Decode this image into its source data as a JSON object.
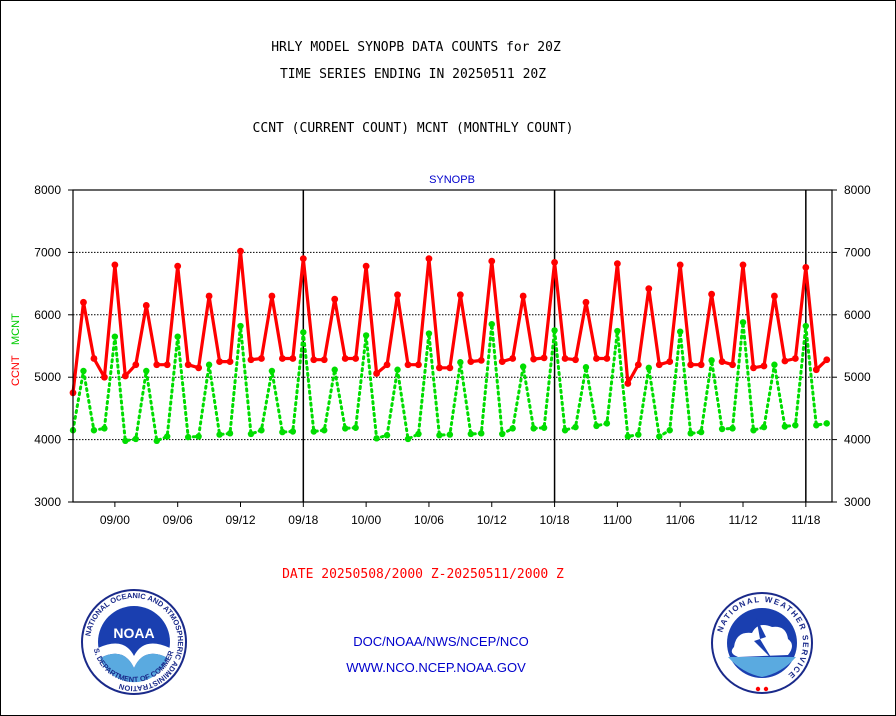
{
  "header": {
    "title_line1": "HRLY MODEL SYNOPB DATA COUNTS for 20Z",
    "title_line2": "TIME SERIES ENDING IN 20250511 20Z",
    "subtitle": "CCNT (CURRENT COUNT) MCNT (MONTHLY COUNT)"
  },
  "footer": {
    "date_range": "DATE 20250508/2000 Z-20250511/2000 Z",
    "org_path": "DOC/NOAA/NWS/NCEP/NCO",
    "website": "WWW.NCO.NCEP.NOAA.GOV"
  },
  "logos": {
    "noaa": {
      "center_text": "NOAA",
      "ring_text": "NATIONAL OCEANIC AND ATMOSPHERIC ADMINISTRATION",
      "ring_text_bottom": "U.S. DEPARTMENT OF COMMERCE"
    },
    "nws": {
      "ring_text": "NATIONAL WEATHER SERVICE"
    }
  },
  "colors": {
    "ccnt": "#ff0000",
    "mcnt": "#00dd00",
    "axis": "#000000",
    "panel_label": "#0000cc",
    "footer_blue": "#0000cc",
    "footer_red": "#ff0000"
  },
  "chart_data": {
    "type": "line",
    "panel_label": "SYNOPB",
    "ylabel_ccnt": "CCNT",
    "ylabel_mcnt": "MCNT",
    "ylim": [
      3000,
      8000
    ],
    "yticks": [
      3000,
      4000,
      5000,
      6000,
      7000,
      8000
    ],
    "ytick_labels": [
      "3000",
      "4000",
      "5000",
      "6000",
      "7000",
      "8000"
    ],
    "grid_y": [
      4000,
      5000,
      6000,
      7000
    ],
    "x_hours_range": [
      -4,
      68.5
    ],
    "xticks": [
      {
        "hour": 0,
        "label": "09/00"
      },
      {
        "hour": 6,
        "label": "09/06"
      },
      {
        "hour": 12,
        "label": "09/12"
      },
      {
        "hour": 18,
        "label": "09/18"
      },
      {
        "hour": 24,
        "label": "10/00"
      },
      {
        "hour": 30,
        "label": "10/06"
      },
      {
        "hour": 36,
        "label": "10/12"
      },
      {
        "hour": 42,
        "label": "10/18"
      },
      {
        "hour": 48,
        "label": "11/00"
      },
      {
        "hour": 54,
        "label": "11/06"
      },
      {
        "hour": 60,
        "label": "11/12"
      },
      {
        "hour": 66,
        "label": "11/18"
      }
    ],
    "day_boundaries": [
      18,
      42,
      66
    ],
    "series": [
      {
        "name": "CCNT",
        "values": [
          4750,
          6200,
          5300,
          5000,
          6800,
          5020,
          5200,
          6150,
          5200,
          5200,
          6780,
          5200,
          5150,
          6300,
          5250,
          5250,
          7020,
          5280,
          5300,
          6300,
          5300,
          5300,
          6900,
          5280,
          5280,
          6250,
          5300,
          5300,
          6780,
          5060,
          5200,
          6320,
          5200,
          5200,
          6900,
          5150,
          5150,
          6320,
          5250,
          5270,
          6860,
          5250,
          5300,
          6300,
          5290,
          5310,
          6840,
          5300,
          5280,
          6200,
          5300,
          5300,
          6820,
          4900,
          5200,
          6420,
          5200,
          5250,
          6800,
          5200,
          5200,
          6330,
          5250,
          5200,
          6800,
          5150,
          5180,
          6300,
          5260,
          5300,
          6760,
          5120,
          5280
        ]
      },
      {
        "name": "MCNT",
        "values": [
          4150,
          5100,
          4150,
          4180,
          5650,
          3980,
          4010,
          5100,
          3980,
          4050,
          5650,
          4040,
          4050,
          5200,
          4080,
          4100,
          5820,
          4090,
          4150,
          5100,
          4120,
          4130,
          5720,
          4130,
          4150,
          5120,
          4180,
          4190,
          5670,
          4020,
          4070,
          5120,
          4010,
          4090,
          5700,
          4070,
          4080,
          5240,
          4090,
          4100,
          5850,
          4090,
          4180,
          5170,
          4180,
          4190,
          5750,
          4150,
          4200,
          5160,
          4220,
          4260,
          5740,
          4050,
          4080,
          5150,
          4050,
          4150,
          5730,
          4100,
          4120,
          5270,
          4170,
          4180,
          5880,
          4150,
          4200,
          5200,
          4210,
          4230,
          5820,
          4230,
          4260
        ]
      }
    ]
  }
}
